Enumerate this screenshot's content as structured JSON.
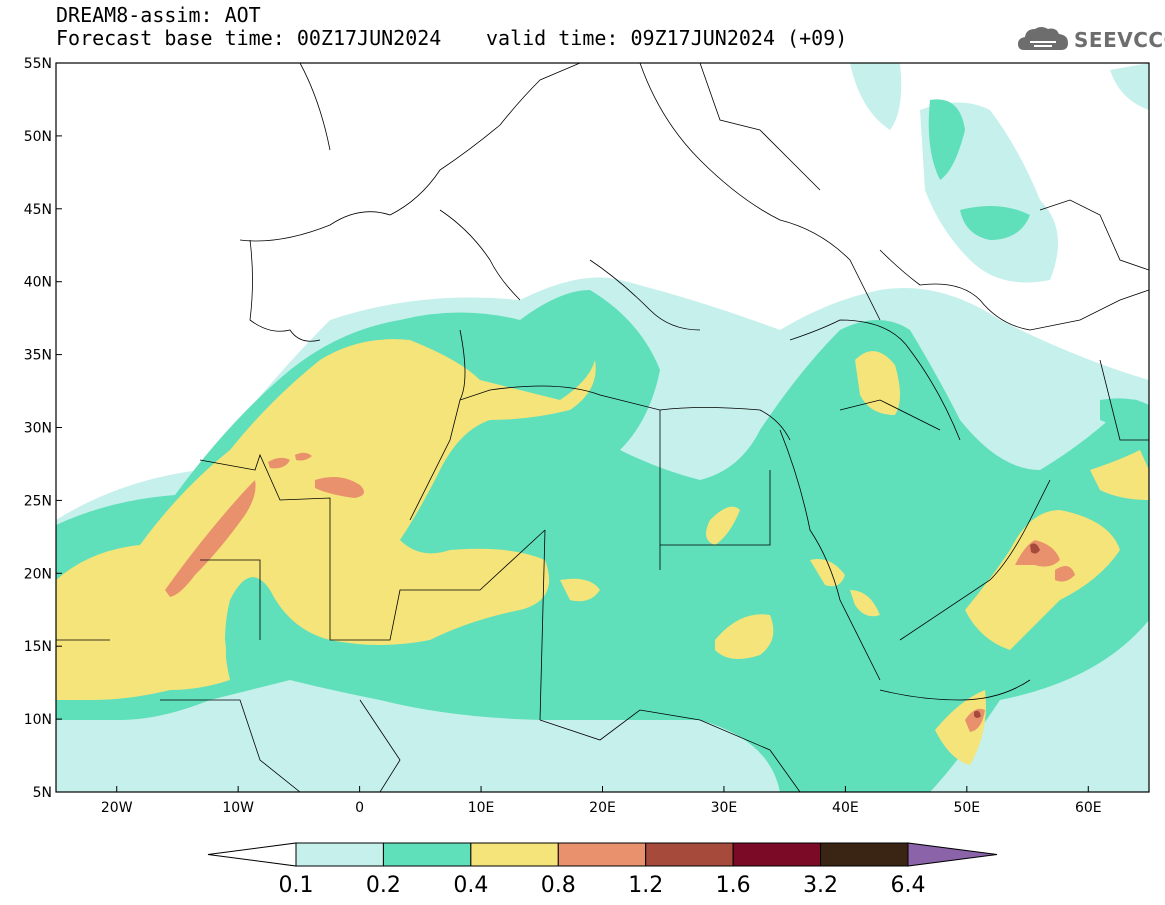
{
  "header": {
    "line1": "DREAM8-assim: AOT",
    "line2": "Forecast base time: 00Z17JUN2024",
    "line3": "valid time: 09Z17JUN2024 (+09)"
  },
  "logo": {
    "text": "SEEVCCC",
    "icon": "cloud-icon"
  },
  "axes": {
    "lon_range": [
      -25,
      65
    ],
    "lat_range": [
      5,
      55
    ],
    "x_ticks": [
      {
        "v": -20,
        "label": "20W"
      },
      {
        "v": -10,
        "label": "10W"
      },
      {
        "v": 0,
        "label": "0"
      },
      {
        "v": 10,
        "label": "10E"
      },
      {
        "v": 20,
        "label": "20E"
      },
      {
        "v": 30,
        "label": "30E"
      },
      {
        "v": 40,
        "label": "40E"
      },
      {
        "v": 50,
        "label": "50E"
      },
      {
        "v": 60,
        "label": "60E"
      }
    ],
    "y_ticks": [
      {
        "v": 5,
        "label": "5N"
      },
      {
        "v": 10,
        "label": "10N"
      },
      {
        "v": 15,
        "label": "15N"
      },
      {
        "v": 20,
        "label": "20N"
      },
      {
        "v": 25,
        "label": "25N"
      },
      {
        "v": 30,
        "label": "30N"
      },
      {
        "v": 35,
        "label": "35N"
      },
      {
        "v": 40,
        "label": "40N"
      },
      {
        "v": 45,
        "label": "45N"
      },
      {
        "v": 50,
        "label": "50N"
      },
      {
        "v": 55,
        "label": "55N"
      }
    ]
  },
  "colorbar": {
    "colors": [
      "#c5f0ec",
      "#5fdfba",
      "#f5e47a",
      "#e8916c",
      "#a64a3c",
      "#7a0a25",
      "#3a2414",
      "#8a63a8"
    ],
    "labels": [
      "0.1",
      "0.2",
      "0.4",
      "0.8",
      "1.2",
      "1.6",
      "3.2",
      "6.4"
    ]
  },
  "fields": {
    "lightcyan": "#c5f0ec",
    "green": "#5fdfba",
    "yellow": "#f5e47a",
    "salmon": "#e8916c",
    "brown": "#a64a3c"
  }
}
